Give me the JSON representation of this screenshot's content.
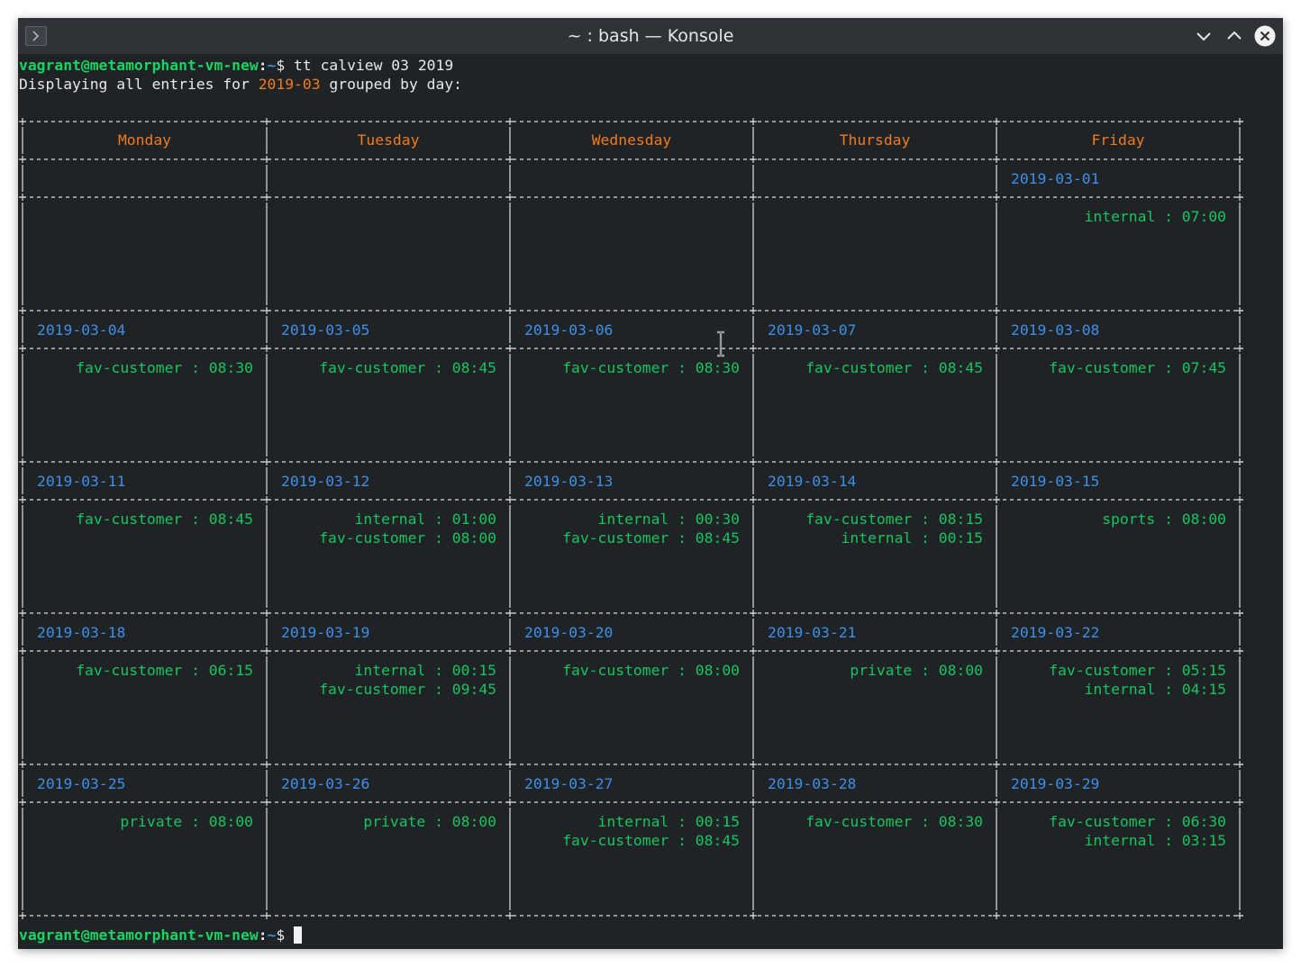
{
  "window": {
    "title": "~ : bash — Konsole"
  },
  "icons": {
    "app": "terminal-icon",
    "minimize": "chevron-down-icon",
    "maximize": "chevron-up-icon",
    "close": "close-icon",
    "pointer": "text-cursor-icon"
  },
  "colors": {
    "background": "#202326",
    "prompt_user": "#17d463",
    "prompt_path": "#3d8fe6",
    "day_header": "#ef7b1e",
    "date": "#3d8fe6",
    "entry": "#17c45f"
  },
  "prompt": {
    "user_host": "vagrant@metamorphant-vm-new",
    "separator": ":",
    "path": "~",
    "symbol": "$"
  },
  "command": " tt calview 03 2019",
  "info": {
    "prefix": "Displaying all entries for ",
    "month": "2019-03",
    "suffix": " grouped by day:"
  },
  "calendar": {
    "days": [
      "Monday",
      "Tuesday",
      "Wednesday",
      "Thursday",
      "Friday"
    ],
    "weeks": [
      [
        null,
        null,
        null,
        null,
        {
          "date": "2019-03-01",
          "entries": [
            {
              "label": "internal",
              "time": "07:00"
            }
          ]
        }
      ],
      [
        {
          "date": "2019-03-04",
          "entries": [
            {
              "label": "fav-customer",
              "time": "08:30"
            }
          ]
        },
        {
          "date": "2019-03-05",
          "entries": [
            {
              "label": "fav-customer",
              "time": "08:45"
            }
          ]
        },
        {
          "date": "2019-03-06",
          "entries": [
            {
              "label": "fav-customer",
              "time": "08:30"
            }
          ]
        },
        {
          "date": "2019-03-07",
          "entries": [
            {
              "label": "fav-customer",
              "time": "08:45"
            }
          ]
        },
        {
          "date": "2019-03-08",
          "entries": [
            {
              "label": "fav-customer",
              "time": "07:45"
            }
          ]
        }
      ],
      [
        {
          "date": "2019-03-11",
          "entries": [
            {
              "label": "fav-customer",
              "time": "08:45"
            }
          ]
        },
        {
          "date": "2019-03-12",
          "entries": [
            {
              "label": "internal",
              "time": "01:00"
            },
            {
              "label": "fav-customer",
              "time": "08:00"
            }
          ]
        },
        {
          "date": "2019-03-13",
          "entries": [
            {
              "label": "internal",
              "time": "00:30"
            },
            {
              "label": "fav-customer",
              "time": "08:45"
            }
          ]
        },
        {
          "date": "2019-03-14",
          "entries": [
            {
              "label": "fav-customer",
              "time": "08:15"
            },
            {
              "label": "internal",
              "time": "00:15"
            }
          ]
        },
        {
          "date": "2019-03-15",
          "entries": [
            {
              "label": "sports",
              "time": "08:00"
            }
          ]
        }
      ],
      [
        {
          "date": "2019-03-18",
          "entries": [
            {
              "label": "fav-customer",
              "time": "06:15"
            }
          ]
        },
        {
          "date": "2019-03-19",
          "entries": [
            {
              "label": "internal",
              "time": "00:15"
            },
            {
              "label": "fav-customer",
              "time": "09:45"
            }
          ]
        },
        {
          "date": "2019-03-20",
          "entries": [
            {
              "label": "fav-customer",
              "time": "08:00"
            }
          ]
        },
        {
          "date": "2019-03-21",
          "entries": [
            {
              "label": "private",
              "time": "08:00"
            }
          ]
        },
        {
          "date": "2019-03-22",
          "entries": [
            {
              "label": "fav-customer",
              "time": "05:15"
            },
            {
              "label": "internal",
              "time": "04:15"
            }
          ]
        }
      ],
      [
        {
          "date": "2019-03-25",
          "entries": [
            {
              "label": "private",
              "time": "08:00"
            }
          ]
        },
        {
          "date": "2019-03-26",
          "entries": [
            {
              "label": "private",
              "time": "08:00"
            }
          ]
        },
        {
          "date": "2019-03-27",
          "entries": [
            {
              "label": "internal",
              "time": "00:15"
            },
            {
              "label": "fav-customer",
              "time": "08:45"
            }
          ]
        },
        {
          "date": "2019-03-28",
          "entries": [
            {
              "label": "fav-customer",
              "time": "08:30"
            }
          ]
        },
        {
          "date": "2019-03-29",
          "entries": [
            {
              "label": "fav-customer",
              "time": "06:30"
            },
            {
              "label": "internal",
              "time": "03:15"
            }
          ]
        }
      ]
    ]
  }
}
